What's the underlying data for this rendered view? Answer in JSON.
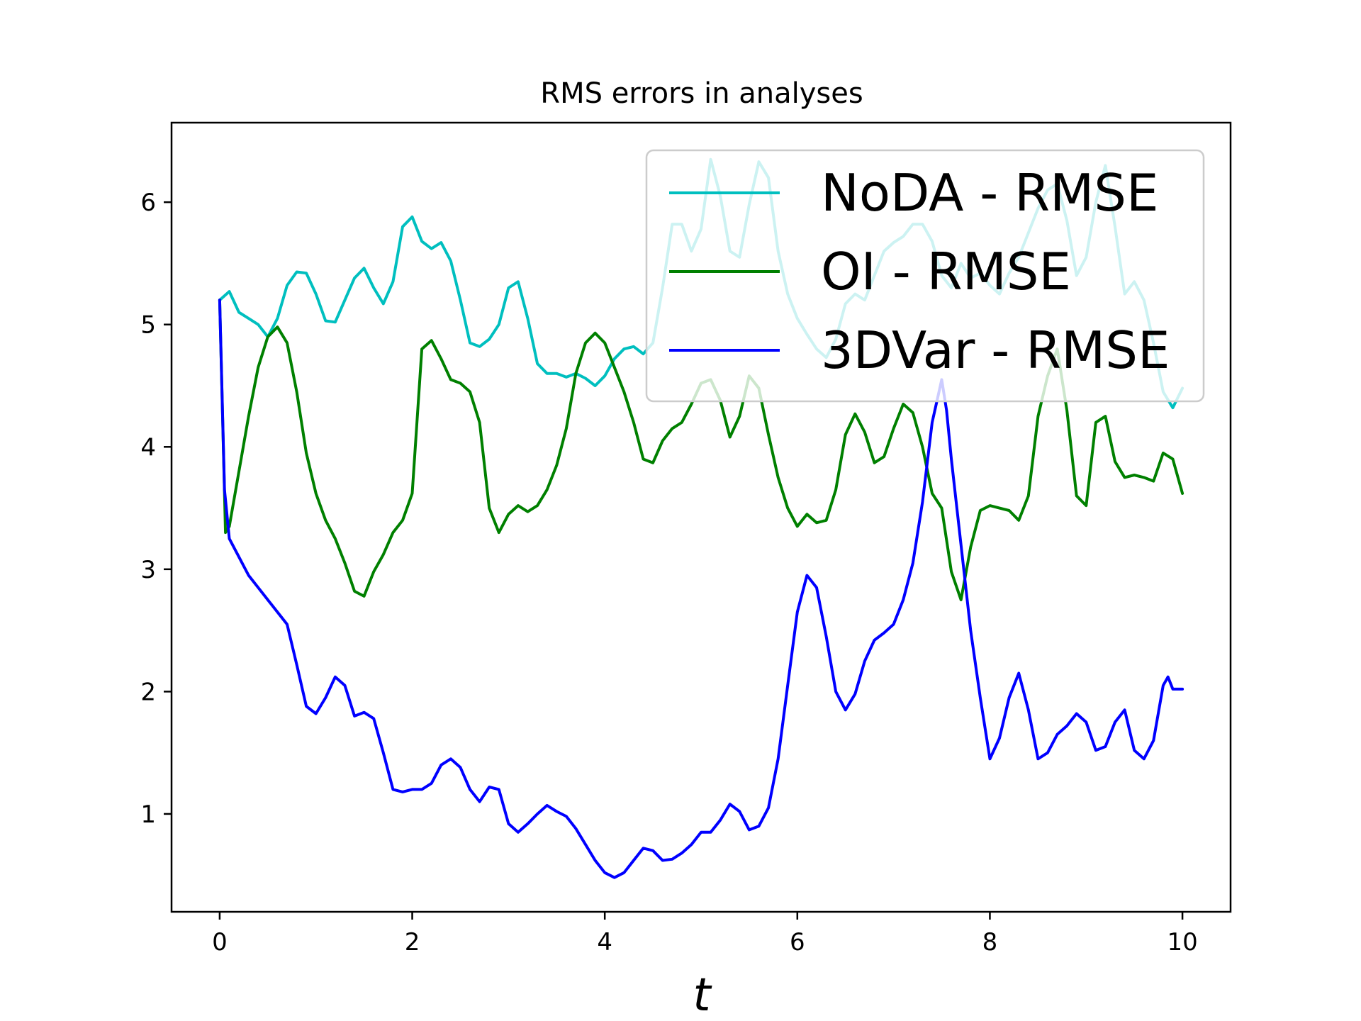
{
  "chart_data": {
    "type": "line",
    "title": "RMS errors in analyses",
    "xlabel": "t",
    "ylabel": "",
    "xlim": [
      -0.5,
      10.5
    ],
    "ylim": [
      0.2,
      6.65
    ],
    "xticks": [
      0,
      2,
      4,
      6,
      8,
      10
    ],
    "yticks": [
      1,
      2,
      3,
      4,
      5,
      6
    ],
    "grid": false,
    "legend_position": "upper right",
    "series": [
      {
        "name": "NoDA - RMSE",
        "color": "#00bfbf",
        "points": [
          [
            0,
            5.2
          ],
          [
            0.1,
            5.27
          ],
          [
            0.2,
            5.1
          ],
          [
            0.3,
            5.05
          ],
          [
            0.4,
            5.0
          ],
          [
            0.5,
            4.9
          ],
          [
            0.6,
            5.05
          ],
          [
            0.7,
            5.32
          ],
          [
            0.8,
            5.43
          ],
          [
            0.9,
            5.42
          ],
          [
            1.0,
            5.25
          ],
          [
            1.1,
            5.03
          ],
          [
            1.2,
            5.02
          ],
          [
            1.3,
            5.2
          ],
          [
            1.4,
            5.38
          ],
          [
            1.5,
            5.46
          ],
          [
            1.6,
            5.3
          ],
          [
            1.7,
            5.17
          ],
          [
            1.8,
            5.35
          ],
          [
            1.9,
            5.8
          ],
          [
            2.0,
            5.88
          ],
          [
            2.1,
            5.68
          ],
          [
            2.2,
            5.62
          ],
          [
            2.3,
            5.67
          ],
          [
            2.4,
            5.52
          ],
          [
            2.5,
            5.2
          ],
          [
            2.6,
            4.85
          ],
          [
            2.7,
            4.82
          ],
          [
            2.8,
            4.88
          ],
          [
            2.9,
            5.0
          ],
          [
            3.0,
            5.3
          ],
          [
            3.1,
            5.35
          ],
          [
            3.2,
            5.05
          ],
          [
            3.3,
            4.68
          ],
          [
            3.4,
            4.6
          ],
          [
            3.5,
            4.6
          ],
          [
            3.6,
            4.57
          ],
          [
            3.7,
            4.6
          ],
          [
            3.8,
            4.56
          ],
          [
            3.9,
            4.5
          ],
          [
            4.0,
            4.58
          ],
          [
            4.1,
            4.72
          ],
          [
            4.2,
            4.8
          ],
          [
            4.3,
            4.82
          ],
          [
            4.4,
            4.76
          ],
          [
            4.5,
            4.85
          ],
          [
            4.6,
            5.3
          ],
          [
            4.7,
            5.82
          ],
          [
            4.8,
            5.82
          ],
          [
            4.9,
            5.6
          ],
          [
            5.0,
            5.78
          ],
          [
            5.1,
            6.35
          ],
          [
            5.2,
            6.05
          ],
          [
            5.3,
            5.6
          ],
          [
            5.4,
            5.55
          ],
          [
            5.5,
            5.98
          ],
          [
            5.6,
            6.33
          ],
          [
            5.7,
            6.2
          ],
          [
            5.8,
            5.6
          ],
          [
            5.9,
            5.25
          ],
          [
            6.0,
            5.05
          ],
          [
            6.1,
            4.92
          ],
          [
            6.2,
            4.8
          ],
          [
            6.3,
            4.73
          ],
          [
            6.4,
            4.88
          ],
          [
            6.5,
            5.17
          ],
          [
            6.6,
            5.25
          ],
          [
            6.7,
            5.2
          ],
          [
            6.8,
            5.4
          ],
          [
            6.9,
            5.6
          ],
          [
            7.0,
            5.67
          ],
          [
            7.1,
            5.72
          ],
          [
            7.2,
            5.82
          ],
          [
            7.3,
            5.82
          ],
          [
            7.4,
            5.68
          ],
          [
            7.5,
            5.4
          ],
          [
            7.6,
            5.3
          ],
          [
            7.7,
            5.5
          ],
          [
            7.8,
            5.38
          ],
          [
            7.9,
            5.42
          ],
          [
            8.0,
            5.32
          ],
          [
            8.1,
            5.25
          ],
          [
            8.2,
            5.42
          ],
          [
            8.3,
            5.55
          ],
          [
            8.4,
            5.75
          ],
          [
            8.5,
            5.95
          ],
          [
            8.6,
            6.1
          ],
          [
            8.7,
            6.15
          ],
          [
            8.8,
            5.85
          ],
          [
            8.9,
            5.4
          ],
          [
            9.0,
            5.55
          ],
          [
            9.1,
            6.0
          ],
          [
            9.2,
            6.3
          ],
          [
            9.3,
            5.8
          ],
          [
            9.4,
            5.25
          ],
          [
            9.5,
            5.35
          ],
          [
            9.6,
            5.2
          ],
          [
            9.7,
            4.85
          ],
          [
            9.8,
            4.45
          ],
          [
            9.9,
            4.32
          ],
          [
            10.0,
            4.48
          ]
        ]
      },
      {
        "name": "OI - RMSE",
        "color": "#008000",
        "points": [
          [
            0,
            5.2
          ],
          [
            0.06,
            3.3
          ],
          [
            0.1,
            3.35
          ],
          [
            0.2,
            3.8
          ],
          [
            0.3,
            4.25
          ],
          [
            0.4,
            4.65
          ],
          [
            0.5,
            4.9
          ],
          [
            0.6,
            4.98
          ],
          [
            0.7,
            4.85
          ],
          [
            0.8,
            4.45
          ],
          [
            0.9,
            3.95
          ],
          [
            1.0,
            3.62
          ],
          [
            1.1,
            3.4
          ],
          [
            1.2,
            3.25
          ],
          [
            1.3,
            3.05
          ],
          [
            1.4,
            2.82
          ],
          [
            1.5,
            2.78
          ],
          [
            1.6,
            2.98
          ],
          [
            1.7,
            3.12
          ],
          [
            1.8,
            3.3
          ],
          [
            1.9,
            3.4
          ],
          [
            2.0,
            3.62
          ],
          [
            2.1,
            4.8
          ],
          [
            2.2,
            4.87
          ],
          [
            2.3,
            4.72
          ],
          [
            2.4,
            4.55
          ],
          [
            2.5,
            4.52
          ],
          [
            2.6,
            4.45
          ],
          [
            2.7,
            4.2
          ],
          [
            2.8,
            3.5
          ],
          [
            2.9,
            3.3
          ],
          [
            3.0,
            3.45
          ],
          [
            3.1,
            3.52
          ],
          [
            3.2,
            3.47
          ],
          [
            3.3,
            3.52
          ],
          [
            3.4,
            3.65
          ],
          [
            3.5,
            3.85
          ],
          [
            3.6,
            4.15
          ],
          [
            3.7,
            4.6
          ],
          [
            3.8,
            4.85
          ],
          [
            3.9,
            4.93
          ],
          [
            4.0,
            4.85
          ],
          [
            4.1,
            4.65
          ],
          [
            4.2,
            4.45
          ],
          [
            4.3,
            4.2
          ],
          [
            4.4,
            3.9
          ],
          [
            4.5,
            3.87
          ],
          [
            4.6,
            4.05
          ],
          [
            4.7,
            4.15
          ],
          [
            4.8,
            4.2
          ],
          [
            4.9,
            4.35
          ],
          [
            5.0,
            4.52
          ],
          [
            5.1,
            4.55
          ],
          [
            5.2,
            4.38
          ],
          [
            5.3,
            4.08
          ],
          [
            5.4,
            4.25
          ],
          [
            5.5,
            4.58
          ],
          [
            5.6,
            4.48
          ],
          [
            5.7,
            4.1
          ],
          [
            5.8,
            3.75
          ],
          [
            5.9,
            3.5
          ],
          [
            6.0,
            3.35
          ],
          [
            6.1,
            3.45
          ],
          [
            6.2,
            3.38
          ],
          [
            6.3,
            3.4
          ],
          [
            6.4,
            3.65
          ],
          [
            6.5,
            4.1
          ],
          [
            6.6,
            4.27
          ],
          [
            6.7,
            4.12
          ],
          [
            6.8,
            3.87
          ],
          [
            6.9,
            3.92
          ],
          [
            7.0,
            4.15
          ],
          [
            7.1,
            4.35
          ],
          [
            7.2,
            4.28
          ],
          [
            7.3,
            4.0
          ],
          [
            7.4,
            3.62
          ],
          [
            7.5,
            3.5
          ],
          [
            7.6,
            2.98
          ],
          [
            7.7,
            2.75
          ],
          [
            7.8,
            3.18
          ],
          [
            7.9,
            3.48
          ],
          [
            8.0,
            3.52
          ],
          [
            8.1,
            3.5
          ],
          [
            8.2,
            3.48
          ],
          [
            8.3,
            3.4
          ],
          [
            8.4,
            3.6
          ],
          [
            8.5,
            4.25
          ],
          [
            8.6,
            4.58
          ],
          [
            8.7,
            4.8
          ],
          [
            8.8,
            4.3
          ],
          [
            8.9,
            3.6
          ],
          [
            9.0,
            3.52
          ],
          [
            9.1,
            4.2
          ],
          [
            9.2,
            4.25
          ],
          [
            9.3,
            3.88
          ],
          [
            9.4,
            3.75
          ],
          [
            9.5,
            3.77
          ],
          [
            9.6,
            3.75
          ],
          [
            9.7,
            3.72
          ],
          [
            9.8,
            3.95
          ],
          [
            9.9,
            3.9
          ],
          [
            10.0,
            3.62
          ]
        ]
      },
      {
        "name": "3DVar - RMSE",
        "color": "#0000ff",
        "points": [
          [
            0,
            5.2
          ],
          [
            0.05,
            3.65
          ],
          [
            0.1,
            3.25
          ],
          [
            0.2,
            3.1
          ],
          [
            0.3,
            2.95
          ],
          [
            0.4,
            2.85
          ],
          [
            0.5,
            2.75
          ],
          [
            0.6,
            2.65
          ],
          [
            0.7,
            2.55
          ],
          [
            0.8,
            2.22
          ],
          [
            0.9,
            1.88
          ],
          [
            1.0,
            1.82
          ],
          [
            1.1,
            1.95
          ],
          [
            1.2,
            2.12
          ],
          [
            1.3,
            2.05
          ],
          [
            1.4,
            1.8
          ],
          [
            1.5,
            1.83
          ],
          [
            1.6,
            1.78
          ],
          [
            1.7,
            1.5
          ],
          [
            1.8,
            1.2
          ],
          [
            1.9,
            1.18
          ],
          [
            2.0,
            1.2
          ],
          [
            2.1,
            1.2
          ],
          [
            2.2,
            1.25
          ],
          [
            2.3,
            1.4
          ],
          [
            2.4,
            1.45
          ],
          [
            2.5,
            1.38
          ],
          [
            2.6,
            1.2
          ],
          [
            2.7,
            1.1
          ],
          [
            2.8,
            1.22
          ],
          [
            2.9,
            1.2
          ],
          [
            3.0,
            0.92
          ],
          [
            3.1,
            0.85
          ],
          [
            3.2,
            0.92
          ],
          [
            3.3,
            1.0
          ],
          [
            3.4,
            1.07
          ],
          [
            3.5,
            1.02
          ],
          [
            3.6,
            0.98
          ],
          [
            3.7,
            0.88
          ],
          [
            3.8,
            0.75
          ],
          [
            3.9,
            0.62
          ],
          [
            4.0,
            0.52
          ],
          [
            4.1,
            0.48
          ],
          [
            4.2,
            0.52
          ],
          [
            4.3,
            0.62
          ],
          [
            4.4,
            0.72
          ],
          [
            4.5,
            0.7
          ],
          [
            4.6,
            0.62
          ],
          [
            4.7,
            0.63
          ],
          [
            4.8,
            0.68
          ],
          [
            4.9,
            0.75
          ],
          [
            5.0,
            0.85
          ],
          [
            5.1,
            0.85
          ],
          [
            5.2,
            0.95
          ],
          [
            5.3,
            1.08
          ],
          [
            5.4,
            1.02
          ],
          [
            5.5,
            0.87
          ],
          [
            5.6,
            0.9
          ],
          [
            5.7,
            1.05
          ],
          [
            5.8,
            1.45
          ],
          [
            5.9,
            2.05
          ],
          [
            6.0,
            2.65
          ],
          [
            6.1,
            2.95
          ],
          [
            6.2,
            2.85
          ],
          [
            6.3,
            2.45
          ],
          [
            6.4,
            2.0
          ],
          [
            6.5,
            1.85
          ],
          [
            6.6,
            1.98
          ],
          [
            6.7,
            2.25
          ],
          [
            6.8,
            2.42
          ],
          [
            6.9,
            2.48
          ],
          [
            7.0,
            2.55
          ],
          [
            7.1,
            2.75
          ],
          [
            7.2,
            3.05
          ],
          [
            7.3,
            3.55
          ],
          [
            7.4,
            4.2
          ],
          [
            7.5,
            4.55
          ],
          [
            7.55,
            4.3
          ],
          [
            7.6,
            3.9
          ],
          [
            7.7,
            3.2
          ],
          [
            7.8,
            2.5
          ],
          [
            7.9,
            1.95
          ],
          [
            8.0,
            1.45
          ],
          [
            8.1,
            1.62
          ],
          [
            8.2,
            1.95
          ],
          [
            8.3,
            2.15
          ],
          [
            8.4,
            1.85
          ],
          [
            8.5,
            1.45
          ],
          [
            8.6,
            1.5
          ],
          [
            8.7,
            1.65
          ],
          [
            8.8,
            1.72
          ],
          [
            8.9,
            1.82
          ],
          [
            9.0,
            1.75
          ],
          [
            9.1,
            1.52
          ],
          [
            9.2,
            1.55
          ],
          [
            9.3,
            1.75
          ],
          [
            9.4,
            1.85
          ],
          [
            9.5,
            1.52
          ],
          [
            9.6,
            1.45
          ],
          [
            9.7,
            1.6
          ],
          [
            9.8,
            2.05
          ],
          [
            9.85,
            2.12
          ],
          [
            9.9,
            2.02
          ],
          [
            10.0,
            2.02
          ]
        ]
      }
    ]
  }
}
